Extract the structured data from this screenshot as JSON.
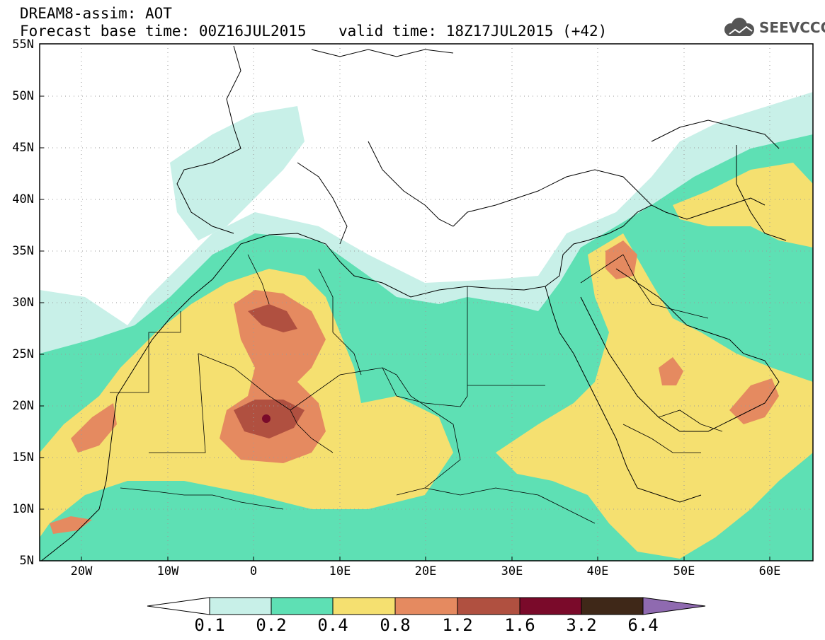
{
  "header": {
    "title": "DREAM8-assim: AOT",
    "base_time": "Forecast base time: 00Z16JUL2015",
    "valid_time": "valid time: 18Z17JUL2015 (+42)",
    "logo_text": "SEEVCCC"
  },
  "axes": {
    "lat_labels": [
      "55N",
      "50N",
      "45N",
      "40N",
      "35N",
      "30N",
      "25N",
      "20N",
      "15N",
      "10N",
      "5N"
    ],
    "lon_labels": [
      "20W",
      "10W",
      "0",
      "10E",
      "20E",
      "30E",
      "40E",
      "50E",
      "60E"
    ]
  },
  "colorbar": {
    "labels": [
      "0.1",
      "0.2",
      "0.4",
      "0.8",
      "1.2",
      "1.6",
      "3.2",
      "6.4"
    ],
    "colors": [
      "#ffffff",
      "#c8f0e8",
      "#5ee0b4",
      "#f5e070",
      "#e58a60",
      "#b05040",
      "#7a0a2a",
      "#3f2818",
      "#8f6ab0"
    ]
  }
}
